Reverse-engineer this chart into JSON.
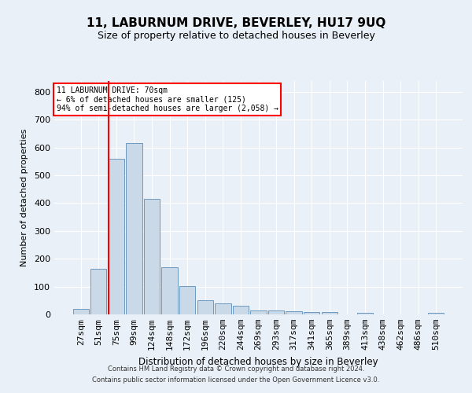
{
  "title": "11, LABURNUM DRIVE, BEVERLEY, HU17 9UQ",
  "subtitle": "Size of property relative to detached houses in Beverley",
  "xlabel": "Distribution of detached houses by size in Beverley",
  "ylabel": "Number of detached properties",
  "categories": [
    "27sqm",
    "51sqm",
    "75sqm",
    "99sqm",
    "124sqm",
    "148sqm",
    "172sqm",
    "196sqm",
    "220sqm",
    "244sqm",
    "269sqm",
    "293sqm",
    "317sqm",
    "341sqm",
    "365sqm",
    "389sqm",
    "413sqm",
    "438sqm",
    "462sqm",
    "486sqm",
    "510sqm"
  ],
  "values": [
    20,
    165,
    560,
    615,
    415,
    170,
    103,
    52,
    40,
    30,
    15,
    13,
    10,
    9,
    8,
    1,
    7,
    0,
    0,
    0,
    7
  ],
  "bar_color": "#c9d9e8",
  "bar_edge_color": "#5b8db8",
  "vline_color": "red",
  "annotation_line1": "11 LABURNUM DRIVE: 70sqm",
  "annotation_line2": "← 6% of detached houses are smaller (125)",
  "annotation_line3": "94% of semi-detached houses are larger (2,058) →",
  "annotation_box_color": "white",
  "annotation_box_edge_color": "red",
  "bg_color": "#eaf0f7",
  "plot_bg_color": "#eaf0f7",
  "grid_color": "white",
  "footer_line1": "Contains HM Land Registry data © Crown copyright and database right 2024.",
  "footer_line2": "Contains public sector information licensed under the Open Government Licence v3.0.",
  "ylim": [
    0,
    840
  ],
  "yticks": [
    0,
    100,
    200,
    300,
    400,
    500,
    600,
    700,
    800
  ],
  "title_fontsize": 11,
  "subtitle_fontsize": 9,
  "vline_bar_index": 2
}
